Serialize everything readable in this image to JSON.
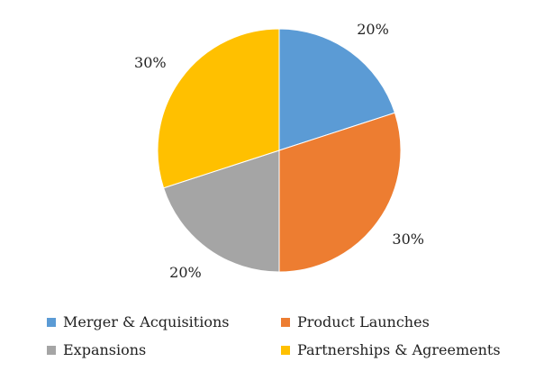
{
  "chart_data": {
    "type": "pie",
    "title": "",
    "legend_position": "bottom",
    "start_angle": "12 o'clock, clockwise",
    "slices": [
      {
        "name": "Merger & Acquisitions",
        "value": 20,
        "label": "20%",
        "color": "#5B9BD5"
      },
      {
        "name": "Product Launches",
        "value": 30,
        "label": "30%",
        "color": "#ED7D31"
      },
      {
        "name": "Expansions",
        "value": 20,
        "label": "20%",
        "color": "#A5A5A5"
      },
      {
        "name": "Partnerships & Agreements",
        "value": 30,
        "label": "30%",
        "color": "#FFC000"
      }
    ]
  }
}
